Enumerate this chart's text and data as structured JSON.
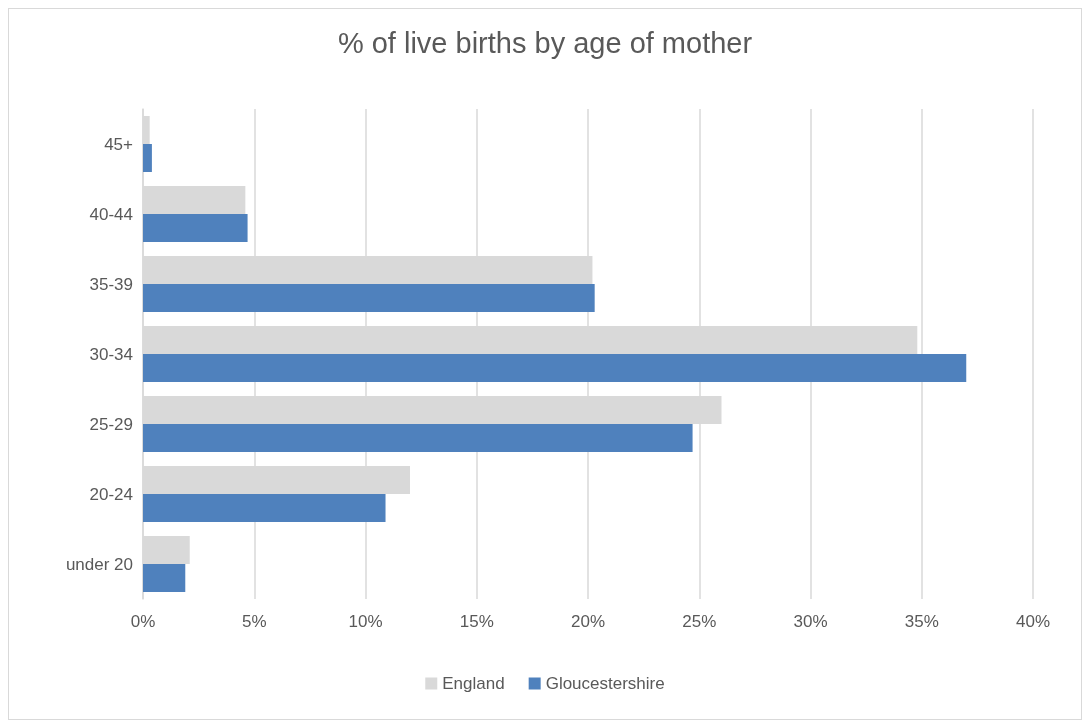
{
  "chart_data": {
    "type": "bar",
    "orientation": "horizontal",
    "title": "% of live births by age of mother",
    "categories": [
      "45+",
      "40-44",
      "35-39",
      "30-34",
      "25-29",
      "20-24",
      "under 20"
    ],
    "series": [
      {
        "name": "England",
        "color": "#d9d9d9",
        "values": [
          0.3,
          4.6,
          20.2,
          34.8,
          26.0,
          12.0,
          2.1
        ]
      },
      {
        "name": "Gloucestershire",
        "color": "#4f81bd",
        "values": [
          0.4,
          4.7,
          20.3,
          37.0,
          24.7,
          10.9,
          1.9
        ]
      }
    ],
    "xlim": [
      0,
      40
    ],
    "xticks": [
      {
        "value": 0,
        "label": "0%"
      },
      {
        "value": 5,
        "label": "5%"
      },
      {
        "value": 10,
        "label": "10%"
      },
      {
        "value": 15,
        "label": "15%"
      },
      {
        "value": 20,
        "label": "20%"
      },
      {
        "value": 25,
        "label": "25%"
      },
      {
        "value": 30,
        "label": "30%"
      },
      {
        "value": 35,
        "label": "35%"
      },
      {
        "value": 40,
        "label": "40%"
      }
    ],
    "grid": "x",
    "legend": "bottom"
  }
}
